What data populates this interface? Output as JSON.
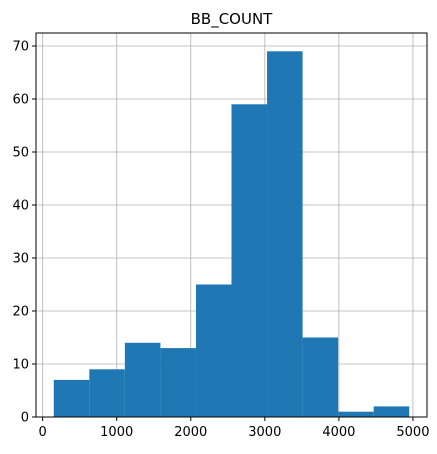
{
  "chart_data": {
    "type": "bar",
    "title": "BB_COUNT",
    "xlabel": "",
    "ylabel": "",
    "bin_edges": [
      150,
      630,
      1110,
      1590,
      2070,
      2550,
      3030,
      3510,
      3990,
      4470,
      4950
    ],
    "values": [
      7,
      9,
      14,
      13,
      25,
      59,
      69,
      15,
      1,
      2
    ],
    "xlim": [
      -90,
      5190
    ],
    "ylim": [
      0,
      72.45
    ],
    "x_ticks": [
      0,
      1000,
      2000,
      3000,
      4000,
      5000
    ],
    "x_tick_labels": [
      "0",
      "1000",
      "2000",
      "3000",
      "4000",
      "5000"
    ],
    "y_ticks": [
      0,
      10,
      20,
      30,
      40,
      50,
      60,
      70
    ],
    "y_tick_labels": [
      "0",
      "10",
      "20",
      "30",
      "40",
      "50",
      "60",
      "70"
    ],
    "grid": true,
    "bar_color": "#1f77b4",
    "grid_color": "#b0b0b0"
  }
}
